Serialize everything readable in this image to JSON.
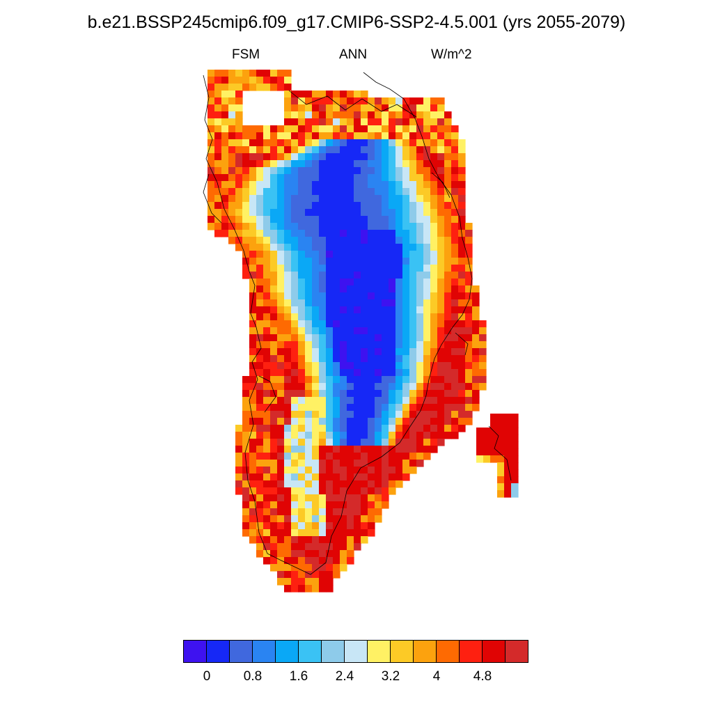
{
  "title": "b.e21.BSSP245cmip6.f09_g17.CMIP6-SSP2-4.5.001 (yrs 2055-2079)",
  "subtitle_left": "FSM",
  "subtitle_center": "ANN",
  "subtitle_right": "W/m^2",
  "colorbar": {
    "colors": [
      "#3e12f0",
      "#1628f6",
      "#4068de",
      "#2a84f2",
      "#0aa8f6",
      "#3ac2f4",
      "#8ecbea",
      "#c8e6f6",
      "#fff164",
      "#fcca26",
      "#fca20e",
      "#fe6a02",
      "#fe2010",
      "#e00404",
      "#d42a2a"
    ],
    "tick_labels": [
      "0",
      "0.8",
      "1.6",
      "2.4",
      "3.2",
      "4",
      "4.8"
    ]
  }
}
